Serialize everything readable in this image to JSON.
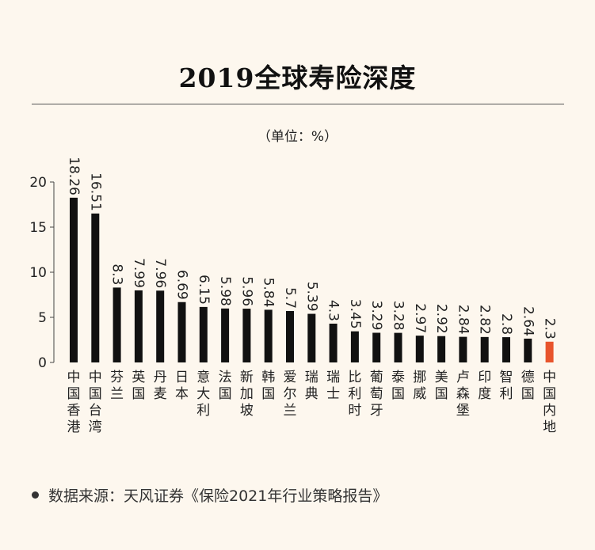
{
  "title": "2019全球寿险深度",
  "unit_label": "（单位：%）",
  "source": "数据来源：天风证券《保险2021年行业策略报告》",
  "colors": {
    "bar": "#111111",
    "highlight": "#e8542c",
    "background": "#fdf7ee"
  },
  "chart_data": {
    "type": "bar",
    "title": "2019全球寿险深度",
    "ylabel": "",
    "xlabel": "",
    "ylim": [
      0,
      20
    ],
    "yticks": [
      0,
      5,
      10,
      15,
      20
    ],
    "categories": [
      "中国香港",
      "中国台湾",
      "芬兰",
      "英国",
      "丹麦",
      "日本",
      "意大利",
      "法国",
      "新加坡",
      "韩国",
      "爱尔兰",
      "瑞典",
      "瑞士",
      "比利时",
      "葡萄牙",
      "泰国",
      "挪威",
      "美国",
      "卢森堡",
      "印度",
      "智利",
      "德国",
      "中国内地"
    ],
    "values": [
      18.26,
      16.51,
      8.3,
      7.99,
      7.96,
      6.69,
      6.15,
      5.98,
      5.96,
      5.84,
      5.7,
      5.39,
      4.3,
      3.45,
      3.29,
      3.28,
      2.97,
      2.92,
      2.84,
      2.82,
      2.8,
      2.64,
      2.3
    ],
    "value_labels": [
      "18.26",
      "16.51",
      "8.3",
      "7.99",
      "7.96",
      "6.69",
      "6.15",
      "5.98",
      "5.96",
      "5.84",
      "5.7",
      "5.39",
      "4.3",
      "3.45",
      "3.29",
      "3.28",
      "2.97",
      "2.92",
      "2.84",
      "2.82",
      "2.8",
      "2.64",
      "2.3"
    ],
    "highlight_index": 22,
    "grid": false,
    "legend": "none"
  }
}
